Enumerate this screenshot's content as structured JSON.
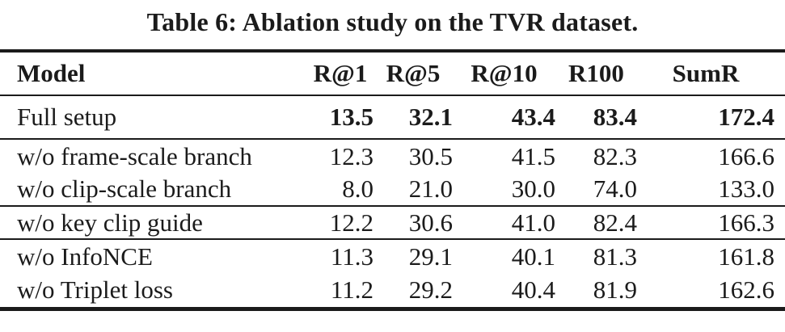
{
  "table": {
    "title": "Table 6: Ablation study on the TVR dataset.",
    "columns": {
      "model": "Model",
      "r1": "R@1",
      "r5": "R@5",
      "r10": "R@10",
      "r100": "R100",
      "sumr": "SumR"
    },
    "rows": [
      {
        "model": "Full setup",
        "values": [
          "13.5",
          "32.1",
          "43.4",
          "83.4",
          "172.4"
        ],
        "bold": true
      },
      {
        "model": "w/o frame-scale branch",
        "values": [
          "12.3",
          "30.5",
          "41.5",
          "82.3",
          "166.6"
        ],
        "bold": false
      },
      {
        "model": "w/o clip-scale branch",
        "values": [
          "8.0",
          "21.0",
          "30.0",
          "74.0",
          "133.0"
        ],
        "bold": false
      },
      {
        "model": "w/o key clip guide",
        "values": [
          "12.2",
          "30.6",
          "41.0",
          "82.4",
          "166.3"
        ],
        "bold": false
      },
      {
        "model": "w/o InfoNCE",
        "values": [
          "11.3",
          "29.1",
          "40.1",
          "81.3",
          "161.8"
        ],
        "bold": false
      },
      {
        "model": "w/o Triplet loss",
        "values": [
          "11.2",
          "29.2",
          "40.4",
          "81.9",
          "162.6"
        ],
        "bold": false
      }
    ],
    "colors": {
      "text": "#1b1b1b",
      "background": "#ffffff",
      "rule": "#1b1b1b"
    }
  },
  "chart_data": {
    "type": "table",
    "title": "Table 6: Ablation study on the TVR dataset.",
    "categories": [
      "R@1",
      "R@5",
      "R@10",
      "R100",
      "SumR"
    ],
    "series": [
      {
        "name": "Full setup",
        "values": [
          13.5,
          32.1,
          43.4,
          83.4,
          172.4
        ]
      },
      {
        "name": "w/o frame-scale branch",
        "values": [
          12.3,
          30.5,
          41.5,
          82.3,
          166.6
        ]
      },
      {
        "name": "w/o clip-scale branch",
        "values": [
          8.0,
          21.0,
          30.0,
          74.0,
          133.0
        ]
      },
      {
        "name": "w/o key clip guide",
        "values": [
          12.2,
          30.6,
          41.0,
          82.4,
          166.3
        ]
      },
      {
        "name": "w/o InfoNCE",
        "values": [
          11.3,
          29.1,
          40.1,
          81.3,
          161.8
        ]
      },
      {
        "name": "w/o Triplet loss",
        "values": [
          11.2,
          29.2,
          40.4,
          81.9,
          162.6
        ]
      }
    ]
  }
}
